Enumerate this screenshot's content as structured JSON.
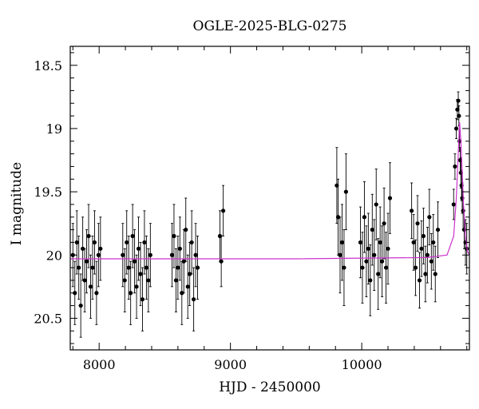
{
  "chart_data": {
    "type": "scatter",
    "title": "OGLE-2025-BLG-0275",
    "xlabel": "HJD - 2450000",
    "ylabel": "I magnitude",
    "xlim": [
      7780,
      10820
    ],
    "ylim": [
      20.75,
      18.35
    ],
    "y_inverted": true,
    "x_ticks": [
      8000,
      9000,
      10000
    ],
    "y_ticks": [
      18.5,
      19,
      19.5,
      20,
      20.5
    ],
    "x_tick_labels": [
      "8000",
      "9000",
      "10000"
    ],
    "y_tick_labels": [
      "18.5",
      "19",
      "19.5",
      "20",
      "20.5"
    ],
    "grid": false,
    "colors": {
      "points": "#000000",
      "model": "#cc33cc"
    },
    "model": {
      "type": "line",
      "baseline_mag": 20.03,
      "x": [
        7780,
        8500,
        9500,
        10500,
        10650,
        10700,
        10720,
        10735,
        10745,
        10755,
        10765,
        10775,
        10790,
        10805,
        10820
      ],
      "y": [
        20.03,
        20.03,
        20.03,
        20.02,
        20.0,
        19.85,
        19.55,
        19.2,
        18.95,
        19.1,
        19.35,
        19.6,
        19.85,
        19.97,
        20.0
      ]
    },
    "series": [
      {
        "x": [
          7800,
          7815,
          7830,
          7845,
          7860,
          7875,
          7890,
          7905,
          7920,
          7935,
          7950,
          7965,
          7980,
          7995,
          8010,
          8180,
          8195,
          8210,
          8225,
          8240,
          8255,
          8270,
          8285,
          8300,
          8315,
          8330,
          8345,
          8360,
          8375,
          8390,
          8555,
          8570,
          8585,
          8600,
          8615,
          8630,
          8645,
          8660,
          8675,
          8690,
          8705,
          8720,
          8735,
          8750,
          8920,
          8930,
          8945,
          9810,
          9820,
          9835,
          9850,
          9865,
          9880,
          9990,
          10005,
          10020,
          10035,
          10050,
          10065,
          10080,
          10095,
          10110,
          10125,
          10140,
          10155,
          10170,
          10185,
          10200,
          10215,
          10380,
          10395,
          10410,
          10425,
          10440,
          10455,
          10470,
          10485,
          10500,
          10515,
          10530,
          10545,
          10560,
          10580,
          10700,
          10710,
          10720,
          10728,
          10735,
          10740,
          10745,
          10750,
          10755,
          10760,
          10765,
          10772,
          10780,
          10790,
          10800
        ],
        "y": [
          20.0,
          20.3,
          19.9,
          20.1,
          20.4,
          19.95,
          20.2,
          20.05,
          19.85,
          20.25,
          20.1,
          19.9,
          20.3,
          20.0,
          19.95,
          20.0,
          20.2,
          19.9,
          20.1,
          20.3,
          19.85,
          20.05,
          20.25,
          19.95,
          20.15,
          20.35,
          19.9,
          20.1,
          20.2,
          20.0,
          20.0,
          19.85,
          20.2,
          20.1,
          19.95,
          20.3,
          20.05,
          19.8,
          20.25,
          20.15,
          19.9,
          20.35,
          20.0,
          20.1,
          19.85,
          20.05,
          19.65,
          19.45,
          19.7,
          20.0,
          19.9,
          20.1,
          19.5,
          19.9,
          20.1,
          19.7,
          20.05,
          19.95,
          20.2,
          19.8,
          20.0,
          19.6,
          20.15,
          19.9,
          20.05,
          19.75,
          20.1,
          19.95,
          19.55,
          19.65,
          19.9,
          20.1,
          19.75,
          20.2,
          19.95,
          19.85,
          20.15,
          20.0,
          19.7,
          20.05,
          19.9,
          20.15,
          19.8,
          19.6,
          19.3,
          19.0,
          18.85,
          18.78,
          18.9,
          19.1,
          19.25,
          19.35,
          19.45,
          19.55,
          19.65,
          19.8,
          19.9,
          19.95
        ],
        "err": [
          0.25,
          0.25,
          0.25,
          0.25,
          0.25,
          0.25,
          0.25,
          0.25,
          0.25,
          0.25,
          0.25,
          0.25,
          0.25,
          0.25,
          0.25,
          0.25,
          0.25,
          0.25,
          0.25,
          0.25,
          0.25,
          0.25,
          0.25,
          0.25,
          0.25,
          0.25,
          0.25,
          0.25,
          0.25,
          0.25,
          0.25,
          0.25,
          0.25,
          0.25,
          0.25,
          0.25,
          0.25,
          0.25,
          0.25,
          0.25,
          0.25,
          0.25,
          0.25,
          0.25,
          0.2,
          0.2,
          0.2,
          0.3,
          0.3,
          0.3,
          0.3,
          0.3,
          0.3,
          0.28,
          0.28,
          0.28,
          0.28,
          0.28,
          0.28,
          0.28,
          0.28,
          0.28,
          0.28,
          0.28,
          0.28,
          0.28,
          0.28,
          0.28,
          0.28,
          0.22,
          0.22,
          0.22,
          0.22,
          0.22,
          0.22,
          0.22,
          0.22,
          0.22,
          0.22,
          0.22,
          0.22,
          0.22,
          0.22,
          0.12,
          0.1,
          0.08,
          0.08,
          0.07,
          0.08,
          0.08,
          0.1,
          0.12,
          0.12,
          0.12,
          0.15,
          0.15,
          0.18,
          0.2
        ]
      }
    ]
  }
}
